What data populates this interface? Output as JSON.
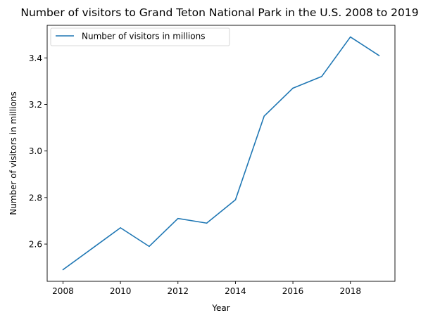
{
  "chart_data": {
    "type": "line",
    "title": "Number of visitors to Grand Teton National Park in the U.S. 2008 to 2019",
    "xlabel": "Year",
    "ylabel": "Number of visitors in millions",
    "x": [
      2008,
      2009,
      2010,
      2011,
      2012,
      2013,
      2014,
      2015,
      2016,
      2017,
      2018,
      2019
    ],
    "series": [
      {
        "name": "Number of visitors in millions",
        "values": [
          2.49,
          2.58,
          2.67,
          2.59,
          2.71,
          2.69,
          2.79,
          3.15,
          3.27,
          3.32,
          3.49,
          3.41
        ],
        "color": "#1f77b4"
      }
    ],
    "xlim": [
      2007.45,
      2019.55
    ],
    "ylim": [
      2.44,
      3.54
    ],
    "x_ticks": [
      2008,
      2010,
      2012,
      2014,
      2016,
      2018
    ],
    "x_tick_labels": [
      "2008",
      "2010",
      "2012",
      "2014",
      "2016",
      "2018"
    ],
    "y_ticks": [
      2.6,
      2.8,
      3.0,
      3.2,
      3.4
    ],
    "y_tick_labels": [
      "2.6",
      "2.8",
      "3.0",
      "3.2",
      "3.4"
    ],
    "legend_position": "top-left",
    "grid": false
  }
}
